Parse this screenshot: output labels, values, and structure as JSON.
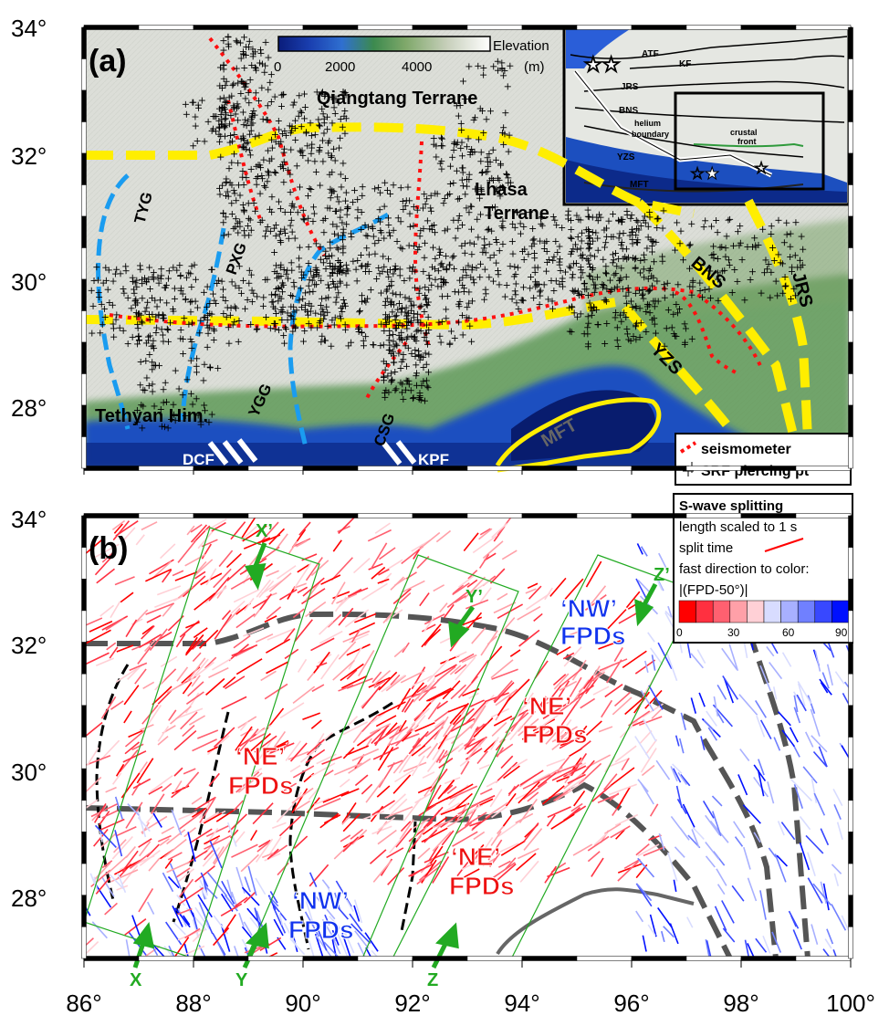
{
  "axes": {
    "lat_labels": [
      "34°",
      "32°",
      "30°",
      "28°"
    ],
    "lon_labels": [
      "86°",
      "88°",
      "90°",
      "92°",
      "94°",
      "96°",
      "98°",
      "100°"
    ]
  },
  "panel_a": {
    "label": "(a)",
    "colorbar": {
      "title": "Elevation",
      "unit": "(m)",
      "ticks": [
        "0",
        "2000",
        "4000"
      ]
    },
    "terranes": {
      "qiangtang": "Qiangtang Terrane",
      "lhasa_1": "Lhasa",
      "lhasa_2": "Terrane",
      "tethyan": "Tethyan Him."
    },
    "rifts": {
      "tyg": "TYG",
      "pxg": "PXG",
      "ygg": "YGG",
      "csg": "CSG",
      "dcf": "DCF",
      "kpf": "KPF"
    },
    "sutures": {
      "bns": "BNS",
      "jrs": "JRS",
      "yzs": "YZS",
      "mft": "MFT"
    },
    "legend": {
      "seismometer": "seismometer",
      "piercing": "SRF piercing pt"
    },
    "inset": {
      "labels": {
        "atf": "ATF",
        "kf": "KF",
        "jrs": "JRS",
        "bns": "BNS",
        "helium_1": "helium",
        "helium_2": "boundary",
        "crustal_1": "crustal",
        "crustal_2": "front",
        "yzs": "YZS",
        "mft": "MFT"
      }
    }
  },
  "panel_b": {
    "label": "(b)",
    "profiles": {
      "x_start": "X",
      "x_end": "X’",
      "y_start": "Y",
      "y_end": "Y’",
      "z_start": "Z",
      "z_end": "Z’"
    },
    "fpd_labels": {
      "ne_center_q": "‘NE’",
      "ne_center_f": "FPDs",
      "ne_east_q": "‘NE’",
      "ne_east_f": "FPDs",
      "ne_south_q": "‘NE’",
      "ne_south_f": "FPDs",
      "nw_south_q": "‘NW’",
      "nw_south_f": "FPDs",
      "nw_north_q": "‘NW’",
      "nw_north_f": "FPDs"
    },
    "legend": {
      "title": "S-wave splitting",
      "line1": "length scaled to 1 s",
      "line2": "split time",
      "line3": "fast direction to color:",
      "line4": "|(FPD-50°)|",
      "ticks": [
        "0",
        "30",
        "60",
        "90"
      ],
      "colors": [
        "#ff0000",
        "#ff3040",
        "#ff6070",
        "#ffa0a8",
        "#ffd0d6",
        "#d8dcff",
        "#a8b0ff",
        "#7080ff",
        "#3848ff",
        "#0010ff"
      ]
    }
  }
}
